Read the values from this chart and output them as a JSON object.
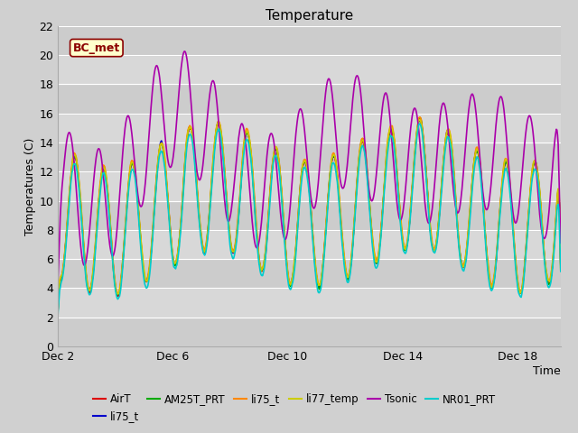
{
  "title": "Temperature",
  "xlabel": "Time",
  "ylabel": "Temperatures (C)",
  "ylim": [
    0,
    22
  ],
  "yticks": [
    0,
    2,
    4,
    6,
    8,
    10,
    12,
    14,
    16,
    18,
    20,
    22
  ],
  "xtick_days": [
    2,
    6,
    10,
    14,
    18
  ],
  "xtick_labels": [
    "Dec 2",
    "Dec 6",
    "Dec 10",
    "Dec 14",
    "Dec 18"
  ],
  "xlim": [
    2,
    19.5
  ],
  "series": [
    {
      "name": "AirT",
      "color": "#dd0000",
      "lw": 1.0
    },
    {
      "name": "li75_t",
      "color": "#0000cc",
      "lw": 1.0
    },
    {
      "name": "AM25T_PRT",
      "color": "#00aa00",
      "lw": 1.0
    },
    {
      "name": "li75_t",
      "color": "#ff8800",
      "lw": 1.2
    },
    {
      "name": "li77_temp",
      "color": "#cccc00",
      "lw": 1.2
    },
    {
      "name": "Tsonic",
      "color": "#aa00aa",
      "lw": 1.2
    },
    {
      "name": "NR01_PRT",
      "color": "#00cccc",
      "lw": 1.2
    }
  ],
  "bc_met_label": "BC_met",
  "bc_met_color": "#8b0000",
  "bc_met_bg": "#ffffcc",
  "fig_bg": "#d0d0d0",
  "plot_bg": "#e0e0e0",
  "band_light": "#cccccc",
  "band_dark": "#d8d8d8",
  "grid_color": "#ffffff",
  "title_fontsize": 11,
  "label_fontsize": 9,
  "tick_fontsize": 9,
  "legend_fontsize": 8.5
}
